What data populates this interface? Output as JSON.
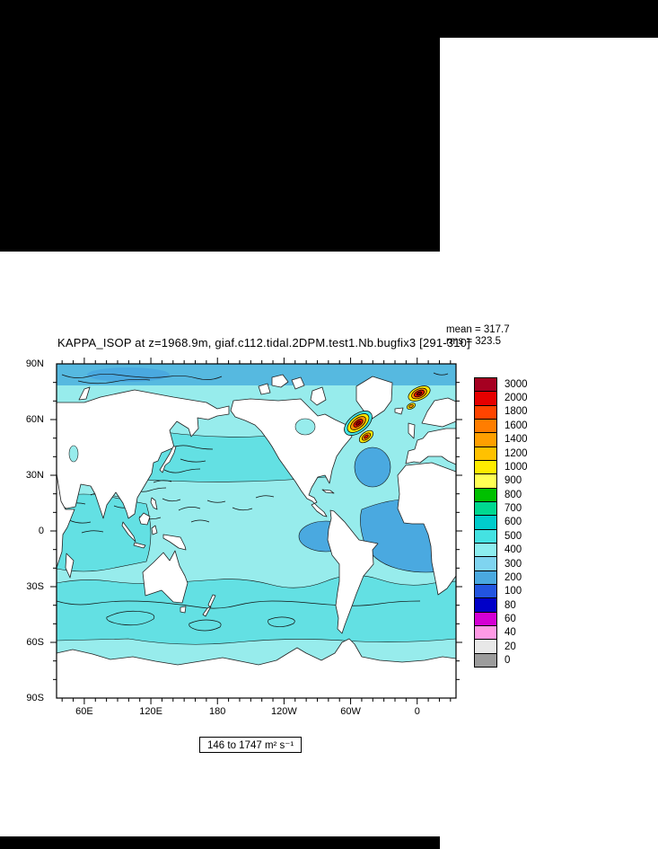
{
  "screen": {
    "background": "#ffffff",
    "letterbox_color": "#000000"
  },
  "plot": {
    "title": "KAPPA_ISOP at z=1968.9m, giaf.c112.tidal.2DPM.test1.Nb.bugfix3 [291-310]",
    "mean_label": "mean = 317.7",
    "rms_label": "rms = 323.5",
    "range_label": "146 to 1747 m² s⁻¹"
  },
  "axes": {
    "lat_labels": [
      "90N",
      "60N",
      "30N",
      "0",
      "30S",
      "60S",
      "90S"
    ],
    "lon_labels": [
      "60E",
      "120E",
      "180",
      "120W",
      "60W",
      "0"
    ]
  },
  "colorbar": {
    "items": [
      {
        "label": "3000",
        "color": "#a50021"
      },
      {
        "label": "2000",
        "color": "#e60000"
      },
      {
        "label": "1800",
        "color": "#ff4400"
      },
      {
        "label": "1600",
        "color": "#ff7d00"
      },
      {
        "label": "1400",
        "color": "#ff9f00"
      },
      {
        "label": "1200",
        "color": "#ffc100"
      },
      {
        "label": "1000",
        "color": "#ffec00"
      },
      {
        "label": "900",
        "color": "#ffff54"
      },
      {
        "label": "800",
        "color": "#00c000"
      },
      {
        "label": "700",
        "color": "#00d890"
      },
      {
        "label": "600",
        "color": "#00cccc"
      },
      {
        "label": "500",
        "color": "#44e2e2"
      },
      {
        "label": "400",
        "color": "#8ceef0"
      },
      {
        "label": "300",
        "color": "#7fd4f0"
      },
      {
        "label": "200",
        "color": "#4aa9e0"
      },
      {
        "label": "100",
        "color": "#2255e0"
      },
      {
        "label": "80",
        "color": "#0000c8"
      },
      {
        "label": "60",
        "color": "#d400d4"
      },
      {
        "label": "40",
        "color": "#ff9ae5"
      },
      {
        "label": "20",
        "color": "#e8e8e8"
      },
      {
        "label": "0",
        "color": "#9c9c9c"
      }
    ]
  },
  "map_colors": {
    "ocean_base": "#97ecec",
    "ocean_band_cyan": "#63e0e3",
    "ocean_band_blue": "#4aa9e0",
    "land": "#ffffff",
    "contour": "#111111"
  },
  "chart_data": {
    "type": "heatmap",
    "title": "KAPPA_ISOP at z=1968.9m, giaf.c112.tidal.2DPM.test1.Nb.bugfix3 [291-310]",
    "mean": 317.7,
    "rms": 323.5,
    "value_range": [
      146,
      1747
    ],
    "units": "m² s⁻¹",
    "x_tick_labels": [
      "60E",
      "120E",
      "180",
      "120W",
      "60W",
      "0"
    ],
    "y_tick_labels": [
      "90N",
      "60N",
      "30N",
      "0",
      "30S",
      "60S",
      "90S"
    ],
    "contour_levels": [
      0,
      20,
      40,
      60,
      80,
      100,
      200,
      300,
      400,
      500,
      600,
      700,
      800,
      900,
      1000,
      1200,
      1400,
      1600,
      1800,
      2000,
      3000
    ],
    "level_colors_low_to_high": [
      "#9c9c9c",
      "#e8e8e8",
      "#ff9ae5",
      "#d400d4",
      "#0000c8",
      "#2255e0",
      "#4aa9e0",
      "#7fd4f0",
      "#8ceef0",
      "#44e2e2",
      "#00cccc",
      "#00d890",
      "#00c000",
      "#ffff54",
      "#ffec00",
      "#ffc100",
      "#ff9f00",
      "#ff7d00",
      "#ff4400",
      "#e60000",
      "#a50021"
    ],
    "legend_position": "right",
    "notes": "Filled-contour global ocean map; open ocean mostly in the 300-500 bands, with maxima above 1600 in the subpolar North Atlantic (Labrador Sea and Norwegian-Greenland Sea)."
  }
}
